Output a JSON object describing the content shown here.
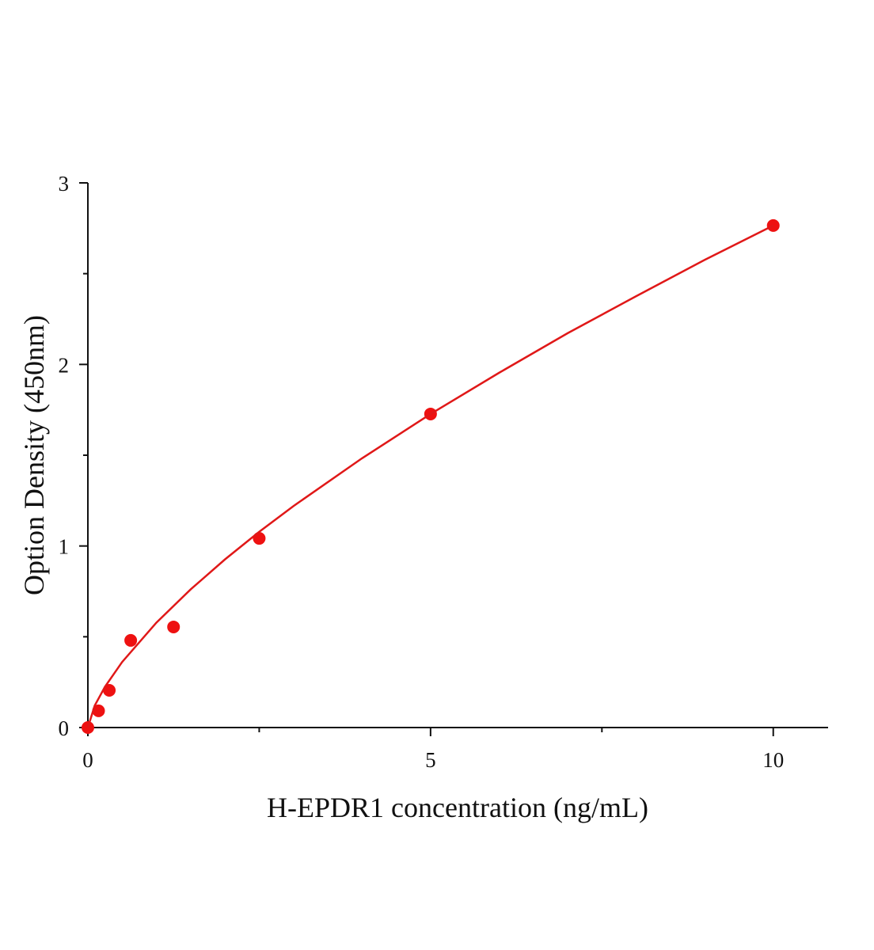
{
  "chart_data": {
    "type": "scatter",
    "x_label": "H-EPDR1 concentration (ng/mL)",
    "y_label": "Option Density (450nm)",
    "xlim": [
      0,
      10.8
    ],
    "ylim": [
      0,
      3
    ],
    "xticks": [
      0,
      5,
      10
    ],
    "yticks": [
      0,
      1,
      2,
      3
    ],
    "xminor_ticks": [
      2.5,
      7.5
    ],
    "yminor_ticks": [
      0.5,
      1.5,
      2.5
    ],
    "series": [
      {
        "type": "scatter",
        "color": "#ee1111",
        "x": [
          0,
          0.156,
          0.3125,
          0.625,
          1.25,
          2.5,
          5,
          10
        ],
        "values": [
          0,
          0.092,
          0.205,
          0.48,
          0.554,
          1.042,
          1.727,
          2.765
        ]
      },
      {
        "type": "line",
        "color": "#e01818",
        "x": [
          0,
          0.1,
          0.25,
          0.5,
          1,
          1.5,
          2,
          2.5,
          3,
          4,
          5,
          6,
          7,
          8,
          9,
          10
        ],
        "values": [
          0,
          0.121,
          0.225,
          0.361,
          0.578,
          0.761,
          0.926,
          1.078,
          1.22,
          1.483,
          1.727,
          1.954,
          2.172,
          2.376,
          2.576,
          2.765
        ]
      }
    ]
  }
}
